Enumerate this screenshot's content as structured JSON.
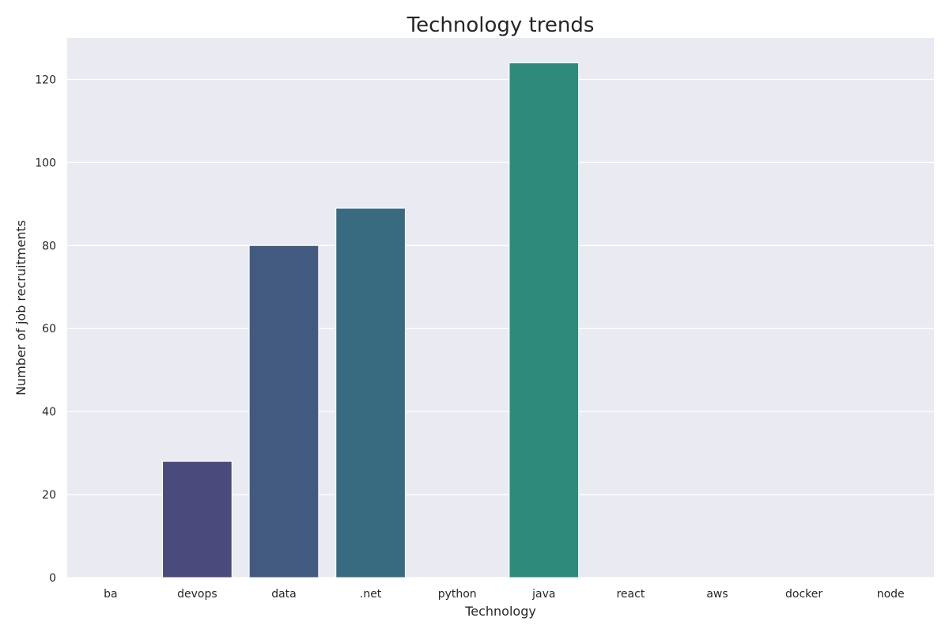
{
  "chart_data": {
    "type": "bar",
    "title": "Technology trends",
    "xlabel": "Technology",
    "ylabel": "Number of job recruitments",
    "categories": [
      "ba",
      "devops",
      "data",
      ".net",
      "python",
      "java",
      "react",
      "aws",
      "docker",
      "node"
    ],
    "values": [
      0,
      28,
      80,
      89,
      0,
      124,
      0,
      0,
      0,
      0
    ],
    "colors": [
      "#482475",
      "#4a4a7c",
      "#425a80",
      "#386b80",
      "#2f7d7f",
      "#2e8b7c",
      "#2a9d7a",
      "#35ae6f",
      "#58bf5c",
      "#8ccf45"
    ],
    "ylim": [
      0,
      130
    ],
    "yticks": [
      0,
      20,
      40,
      60,
      80,
      100,
      120
    ],
    "grid": true,
    "background": "#eaeaf2",
    "legend": "none"
  }
}
